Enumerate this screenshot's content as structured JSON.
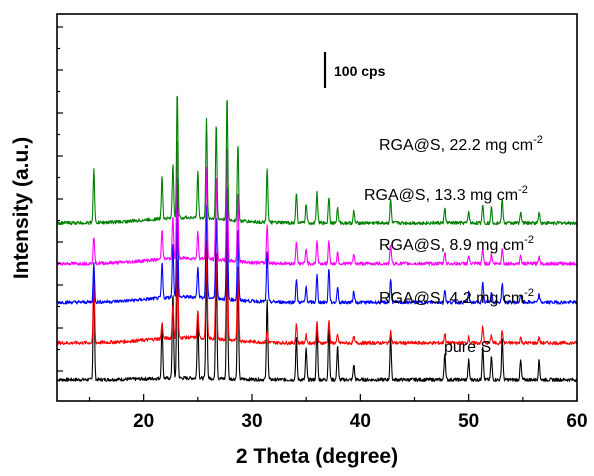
{
  "chart_data": {
    "type": "line",
    "title": "",
    "xlabel": "2 Theta (degree)",
    "ylabel": "Intensity (a.u.)",
    "xlim": [
      12,
      60
    ],
    "xticks": [
      20,
      30,
      40,
      50,
      60
    ],
    "y_tick_labels_shown": false,
    "grid": false,
    "scale_bar": "100 cps",
    "peak_positions": [
      15.4,
      21.7,
      22.7,
      23.1,
      25.0,
      25.8,
      26.7,
      27.7,
      28.7,
      31.4,
      34.1,
      35.0,
      36.0,
      37.1,
      37.9,
      39.4,
      42.8,
      47.8,
      50.0,
      51.3,
      52.1,
      53.1,
      54.8,
      56.5
    ],
    "series": [
      {
        "name": "pure S",
        "label_main": "pure S",
        "label_sup": "",
        "color": "#000000",
        "baseline": 55,
        "peak_heights": [
          260,
          140,
          220,
          320,
          160,
          300,
          290,
          320,
          260,
          210,
          110,
          80,
          150,
          140,
          90,
          40,
          110,
          70,
          50,
          90,
          60,
          110,
          50,
          50
        ]
      },
      {
        "name": "RGA@S, 4.2 mg cm-2",
        "label_main": "RGA@S, 4.2 mg cm",
        "label_sup": "-2",
        "color": "#ff0000",
        "baseline": 150,
        "peak_heights": [
          170,
          40,
          90,
          320,
          70,
          250,
          230,
          320,
          200,
          30,
          50,
          20,
          50,
          60,
          20,
          15,
          30,
          25,
          15,
          45,
          20,
          30,
          15,
          15
        ]
      },
      {
        "name": "RGA@S, 8.9 mg cm-2",
        "label_main": "RGA@S, 8.9 mg cm",
        "label_sup": "-2",
        "color": "#0000ff",
        "baseline": 255,
        "peak_heights": [
          100,
          90,
          140,
          320,
          80,
          240,
          220,
          300,
          190,
          130,
          60,
          40,
          70,
          90,
          40,
          30,
          60,
          35,
          25,
          50,
          30,
          50,
          20,
          20
        ]
      },
      {
        "name": "RGA@S, 13.3 mg cm-2",
        "label_main": "RGA@S, 13.3 mg cm",
        "label_sup": "-2",
        "color": "#ff00ff",
        "baseline": 355,
        "peak_heights": [
          70,
          80,
          110,
          320,
          70,
          240,
          220,
          300,
          180,
          100,
          60,
          40,
          60,
          60,
          30,
          25,
          50,
          30,
          20,
          40,
          25,
          40,
          20,
          20
        ]
      },
      {
        "name": "RGA@S, 22.2 mg cm-2",
        "label_main": "RGA@S, 22.2 mg cm",
        "label_sup": "-2",
        "color": "#008000",
        "baseline": 460,
        "peak_heights": [
          140,
          110,
          140,
          330,
          120,
          260,
          250,
          320,
          200,
          140,
          80,
          50,
          80,
          70,
          40,
          30,
          60,
          40,
          30,
          50,
          40,
          60,
          30,
          30
        ]
      }
    ]
  }
}
